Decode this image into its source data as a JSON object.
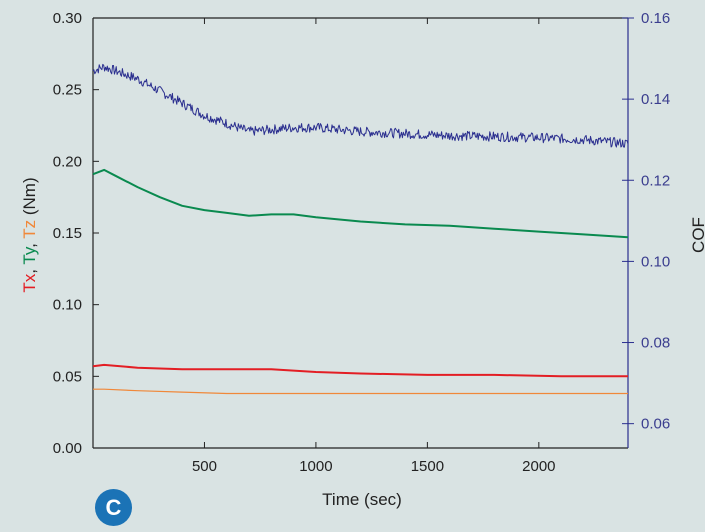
{
  "badge": "C",
  "colors": {
    "tx": "#e31e24",
    "ty": "#0a8a4f",
    "tz": "#f0883a",
    "cof": "#2b2f8f",
    "background": "#d9e3e3",
    "badge": "#1b73b6"
  },
  "chart_data": {
    "type": "line",
    "xlabel": "Time (sec)",
    "ylabel_parts": [
      {
        "text": "Tx",
        "series": "tx"
      },
      {
        "text": ", ",
        "series": null
      },
      {
        "text": "Ty",
        "series": "ty"
      },
      {
        "text": ", ",
        "series": null
      },
      {
        "text": "Tz",
        "series": "tz"
      },
      {
        "text": " (Nm)",
        "series": null
      }
    ],
    "y2label": "COF",
    "xlim": [
      0,
      2400
    ],
    "ylim": [
      0,
      0.3
    ],
    "y2lim": [
      0.054,
      0.16
    ],
    "xticks": [
      500,
      1000,
      1500,
      2000
    ],
    "yticks": [
      "0.00",
      "0.05",
      "0.10",
      "0.15",
      "0.20",
      "0.25",
      "0.30"
    ],
    "y2ticks": [
      "0.06",
      "0.08",
      "0.10",
      "0.12",
      "0.14",
      "0.16"
    ],
    "grid": false,
    "legend": "none",
    "series": [
      {
        "key": "cof",
        "axis": "right",
        "noise": 0.0012,
        "x": [
          0,
          50,
          100,
          200,
          300,
          400,
          500,
          600,
          700,
          800,
          900,
          1000,
          1200,
          1400,
          1600,
          1800,
          2000,
          2200,
          2400
        ],
        "y": [
          0.147,
          0.148,
          0.147,
          0.145,
          0.142,
          0.139,
          0.136,
          0.134,
          0.132,
          0.1325,
          0.133,
          0.133,
          0.132,
          0.1315,
          0.131,
          0.1308,
          0.1305,
          0.13,
          0.129
        ]
      },
      {
        "key": "ty",
        "axis": "left",
        "x": [
          0,
          50,
          100,
          200,
          300,
          400,
          500,
          600,
          700,
          800,
          900,
          1000,
          1200,
          1400,
          1600,
          1800,
          2000,
          2200,
          2400
        ],
        "y": [
          0.191,
          0.194,
          0.19,
          0.182,
          0.175,
          0.169,
          0.166,
          0.164,
          0.162,
          0.163,
          0.163,
          0.161,
          0.158,
          0.156,
          0.155,
          0.153,
          0.151,
          0.149,
          0.147
        ]
      },
      {
        "key": "tx",
        "axis": "left",
        "x": [
          0,
          50,
          200,
          400,
          600,
          800,
          1000,
          1200,
          1500,
          1800,
          2100,
          2400
        ],
        "y": [
          0.057,
          0.058,
          0.056,
          0.055,
          0.055,
          0.055,
          0.053,
          0.052,
          0.051,
          0.051,
          0.05,
          0.05
        ]
      },
      {
        "key": "tz",
        "axis": "left",
        "x": [
          0,
          50,
          200,
          400,
          600,
          800,
          1000,
          1400,
          1800,
          2400
        ],
        "y": [
          0.041,
          0.041,
          0.04,
          0.039,
          0.038,
          0.038,
          0.038,
          0.038,
          0.038,
          0.038
        ]
      }
    ]
  }
}
